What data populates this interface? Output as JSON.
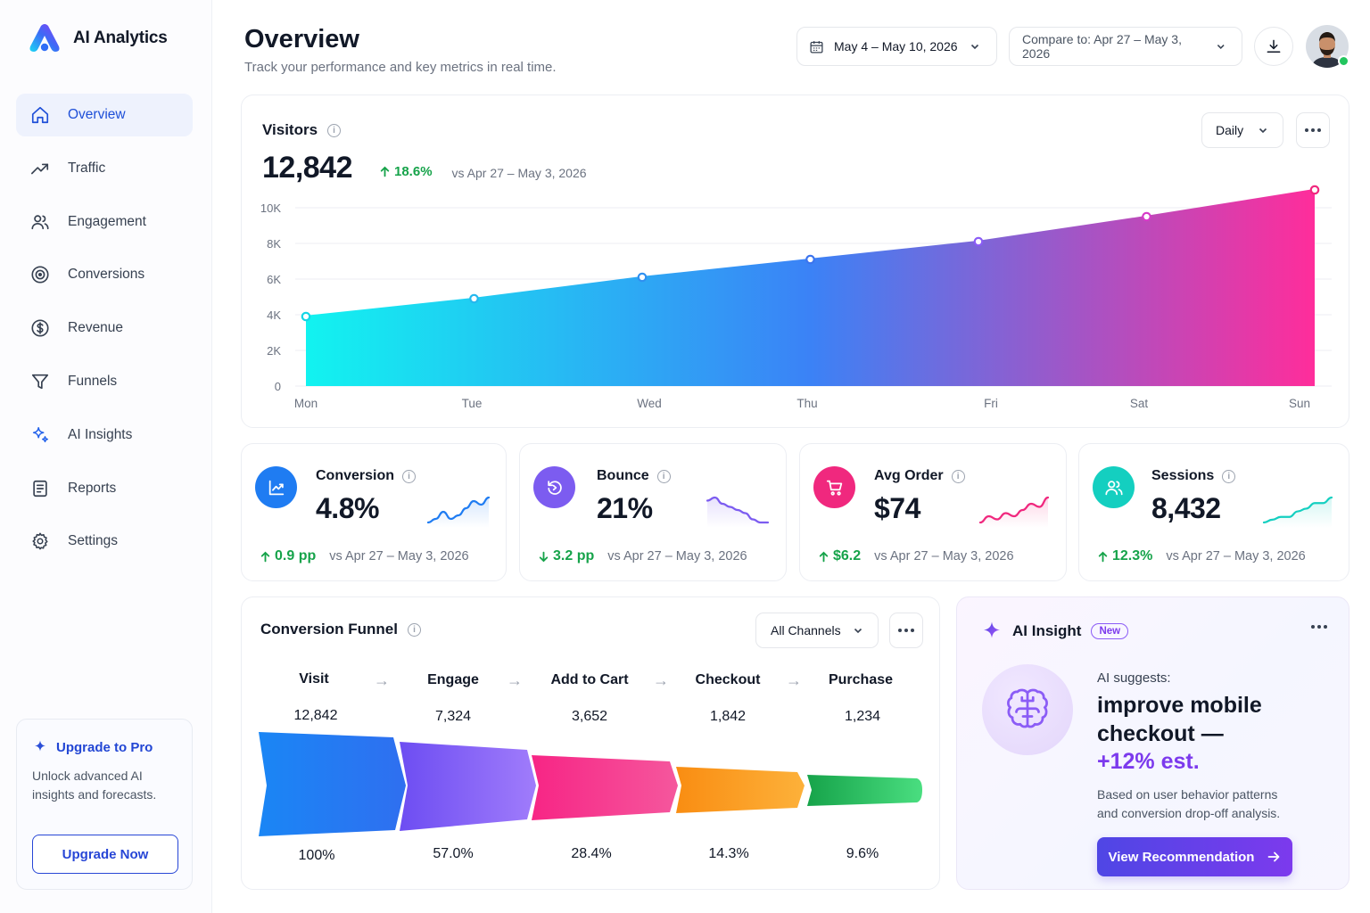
{
  "app": {
    "name": "AI Analytics"
  },
  "nav": [
    {
      "label": "Overview",
      "icon": "home-icon",
      "active": true
    },
    {
      "label": "Traffic",
      "icon": "trending-up-icon"
    },
    {
      "label": "Engagement",
      "icon": "users-icon"
    },
    {
      "label": "Conversions",
      "icon": "target-icon"
    },
    {
      "label": "Revenue",
      "icon": "dollar-icon"
    },
    {
      "label": "Funnels",
      "icon": "funnel-icon"
    },
    {
      "label": "AI Insights",
      "icon": "sparkles-icon"
    },
    {
      "label": "Reports",
      "icon": "report-icon"
    },
    {
      "label": "Settings",
      "icon": "gear-icon"
    }
  ],
  "upgrade": {
    "title": "Upgrade to Pro",
    "desc": "Unlock advanced AI insights and forecasts.",
    "button": "Upgrade Now"
  },
  "header": {
    "title": "Overview",
    "subtitle": "Track your performance and key metrics in real time.",
    "date_range": "May 4 – May 10, 2026",
    "compare": "Compare to: Apr 27 – May 3, 2026"
  },
  "visitors": {
    "title": "Visitors",
    "value": "12,842",
    "delta": "18.6%",
    "vs": "vs Apr 27 – May 3, 2026",
    "period": "Daily"
  },
  "chart_data": {
    "type": "area",
    "categories": [
      "Mon",
      "Tue",
      "Wed",
      "Thu",
      "Fri",
      "Sat",
      "Sun"
    ],
    "values": [
      3900,
      4900,
      6100,
      7100,
      8100,
      9500,
      11000
    ],
    "ylim": [
      0,
      11000
    ],
    "yticks": [
      0,
      2000,
      4000,
      6000,
      8000,
      10000
    ],
    "ytick_labels": [
      "0",
      "2K",
      "4K",
      "6K",
      "8K",
      "10K"
    ],
    "grid": true,
    "colors": {
      "start": "#12f3f0",
      "mid": "#3b82f6",
      "end": "#ff2d9b"
    }
  },
  "kpis": [
    {
      "label": "Conversion",
      "value": "4.8%",
      "delta": "0.9 pp",
      "direction": "up",
      "vs": "vs Apr 27 – May 3, 2026",
      "icon": "chart-line-icon",
      "color": "#1f7cf2",
      "spark": [
        3,
        4,
        6,
        4,
        5,
        7,
        9,
        8,
        10
      ]
    },
    {
      "label": "Bounce",
      "value": "21%",
      "delta": "3.2 pp",
      "direction": "down",
      "vs": "vs Apr 27 – May 3, 2026",
      "icon": "refresh-icon",
      "color": "#7c5cf0",
      "spark": [
        9,
        10,
        8,
        7,
        6,
        5,
        3,
        2,
        2
      ]
    },
    {
      "label": "Avg Order",
      "value": "$74",
      "delta": "$6.2",
      "direction": "up",
      "vs": "vs Apr 27 – May 3, 2026",
      "icon": "cart-icon",
      "color": "#f0287e",
      "spark": [
        2,
        4,
        3,
        5,
        4,
        6,
        8,
        7,
        10
      ]
    },
    {
      "label": "Sessions",
      "value": "8,432",
      "delta": "12.3%",
      "direction": "up",
      "vs": "vs Apr 27 – May 3, 2026",
      "icon": "users-icon",
      "color": "#14cfc0",
      "spark": [
        1,
        2,
        3,
        3,
        5,
        6,
        8,
        8,
        10
      ]
    }
  ],
  "funnel": {
    "title": "Conversion Funnel",
    "filter": "All Channels",
    "stages": [
      {
        "label": "Visit",
        "value": "12,842",
        "pct": "100%",
        "color": "#1e6cf0"
      },
      {
        "label": "Engage",
        "value": "7,324",
        "pct": "57.0%",
        "color": "#7c4dff"
      },
      {
        "label": "Add to Cart",
        "value": "3,652",
        "pct": "28.4%",
        "color": "#f0287e"
      },
      {
        "label": "Checkout",
        "value": "1,842",
        "pct": "14.3%",
        "color": "#f7920e"
      },
      {
        "label": "Purchase",
        "value": "1,234",
        "pct": "9.6%",
        "color": "#16a34a"
      }
    ]
  },
  "insight": {
    "title": "AI Insight",
    "badge": "New",
    "lead": "AI suggests:",
    "headline_1": "improve mobile",
    "headline_2": "checkout —",
    "headline_3": "+12% est.",
    "body": "Based on user behavior patterns and conversion drop-off analysis.",
    "button": "View Recommendation"
  }
}
